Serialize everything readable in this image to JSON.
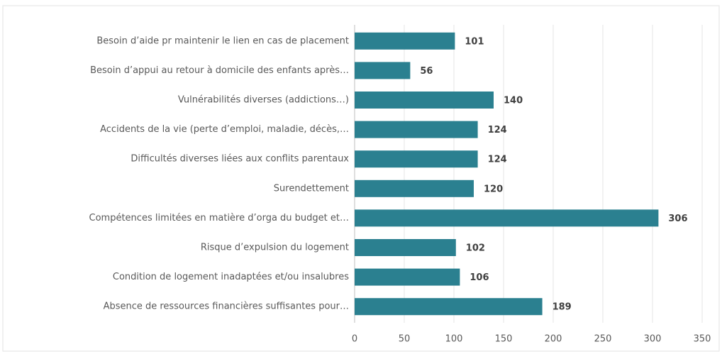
{
  "chart_data": {
    "type": "bar",
    "orientation": "horizontal",
    "categories": [
      "Besoin d’aide pr maintenir le lien en cas de placement",
      "Besoin d’appui au retour à domicile des enfants après…",
      "Vulnérabilités diverses (addictions…)",
      "Accidents de la vie (perte d’emploi, maladie, décès,…",
      "Difficultés diverses liées aux conflits parentaux",
      "Surendettement",
      "Compétences limitées en matière d’orga du budget et…",
      "Risque d’expulsion du logement",
      "Condition de logement inadaptées et/ou insalubres",
      "Absence de ressources financières suffisantes pour…"
    ],
    "values": [
      101,
      56,
      140,
      124,
      124,
      120,
      306,
      102,
      106,
      189
    ],
    "color": "#2b8090",
    "xlim": [
      0,
      350
    ],
    "xticks": [
      0,
      50,
      100,
      150,
      200,
      250,
      300,
      350
    ],
    "grid": true
  }
}
